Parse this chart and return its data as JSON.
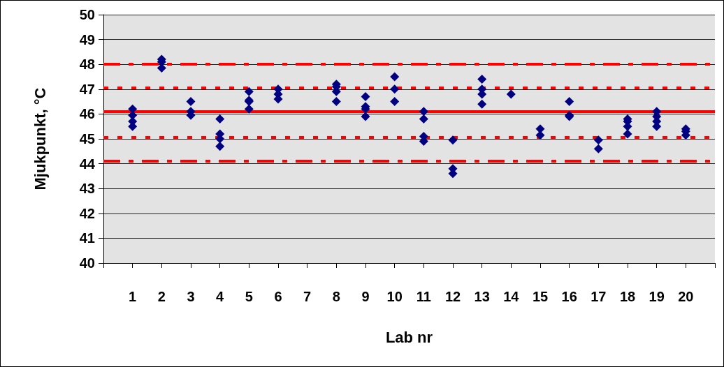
{
  "chart_data": {
    "type": "scatter",
    "xlabel": "Lab nr",
    "ylabel": "Mjukpunkt, °C",
    "xlim": [
      0,
      21
    ],
    "xticks": [
      {
        "value": 0,
        "label": null
      },
      1,
      2,
      3,
      4,
      5,
      6,
      7,
      8,
      9,
      10,
      11,
      12,
      13,
      14,
      15,
      16,
      17,
      18,
      19,
      20,
      {
        "value": 21,
        "label": null
      }
    ],
    "ylim": [
      40,
      50
    ],
    "yticks": [
      40,
      41,
      42,
      43,
      44,
      45,
      46,
      47,
      48,
      49,
      50
    ],
    "grid": "y",
    "marker": "diamond",
    "series": [
      {
        "color": "#000080",
        "x": [
          1,
          1,
          1,
          1,
          2,
          2,
          2,
          3,
          3,
          3,
          4,
          4,
          4,
          4,
          5,
          5,
          5,
          5,
          6,
          6,
          6,
          8,
          8,
          8,
          8,
          9,
          9,
          9,
          9,
          10,
          10,
          10,
          11,
          11,
          11,
          11,
          12,
          12,
          12,
          13,
          13,
          13,
          13,
          14,
          15,
          15,
          16,
          16,
          16,
          17,
          17,
          18,
          18,
          18,
          18,
          19,
          19,
          19,
          19,
          20,
          20,
          20
        ],
        "values": [
          46.2,
          45.95,
          45.7,
          45.5,
          48.2,
          48.1,
          47.85,
          46.5,
          46.1,
          45.95,
          45.8,
          45.2,
          45.0,
          44.7,
          46.9,
          46.55,
          46.5,
          46.2,
          47.0,
          46.8,
          46.6,
          47.2,
          47.1,
          46.9,
          46.5,
          46.7,
          46.3,
          46.2,
          45.9,
          47.5,
          47.0,
          46.5,
          46.1,
          45.8,
          45.1,
          44.9,
          44.95,
          43.8,
          43.6,
          47.4,
          47.0,
          46.8,
          46.4,
          46.8,
          45.4,
          45.15,
          46.5,
          45.95,
          45.9,
          44.95,
          44.6,
          45.8,
          45.7,
          45.5,
          45.2,
          46.1,
          45.9,
          45.7,
          45.5,
          45.4,
          45.3,
          45.15
        ]
      }
    ],
    "ref_lines": [
      {
        "axis": "y",
        "value": 46.1,
        "color": "#ff0000",
        "line_style": "solid"
      },
      {
        "axis": "y",
        "value": 47.05,
        "color": "#ff0000",
        "line_style": "dotted"
      },
      {
        "axis": "y",
        "value": 45.07,
        "color": "#ff0000",
        "line_style": "dotted"
      },
      {
        "axis": "y",
        "value": 48.0,
        "color": "#ff0000",
        "line_style": "dashed"
      },
      {
        "axis": "y",
        "value": 44.1,
        "color": "#ff0000",
        "line_style": "dashed"
      }
    ]
  }
}
